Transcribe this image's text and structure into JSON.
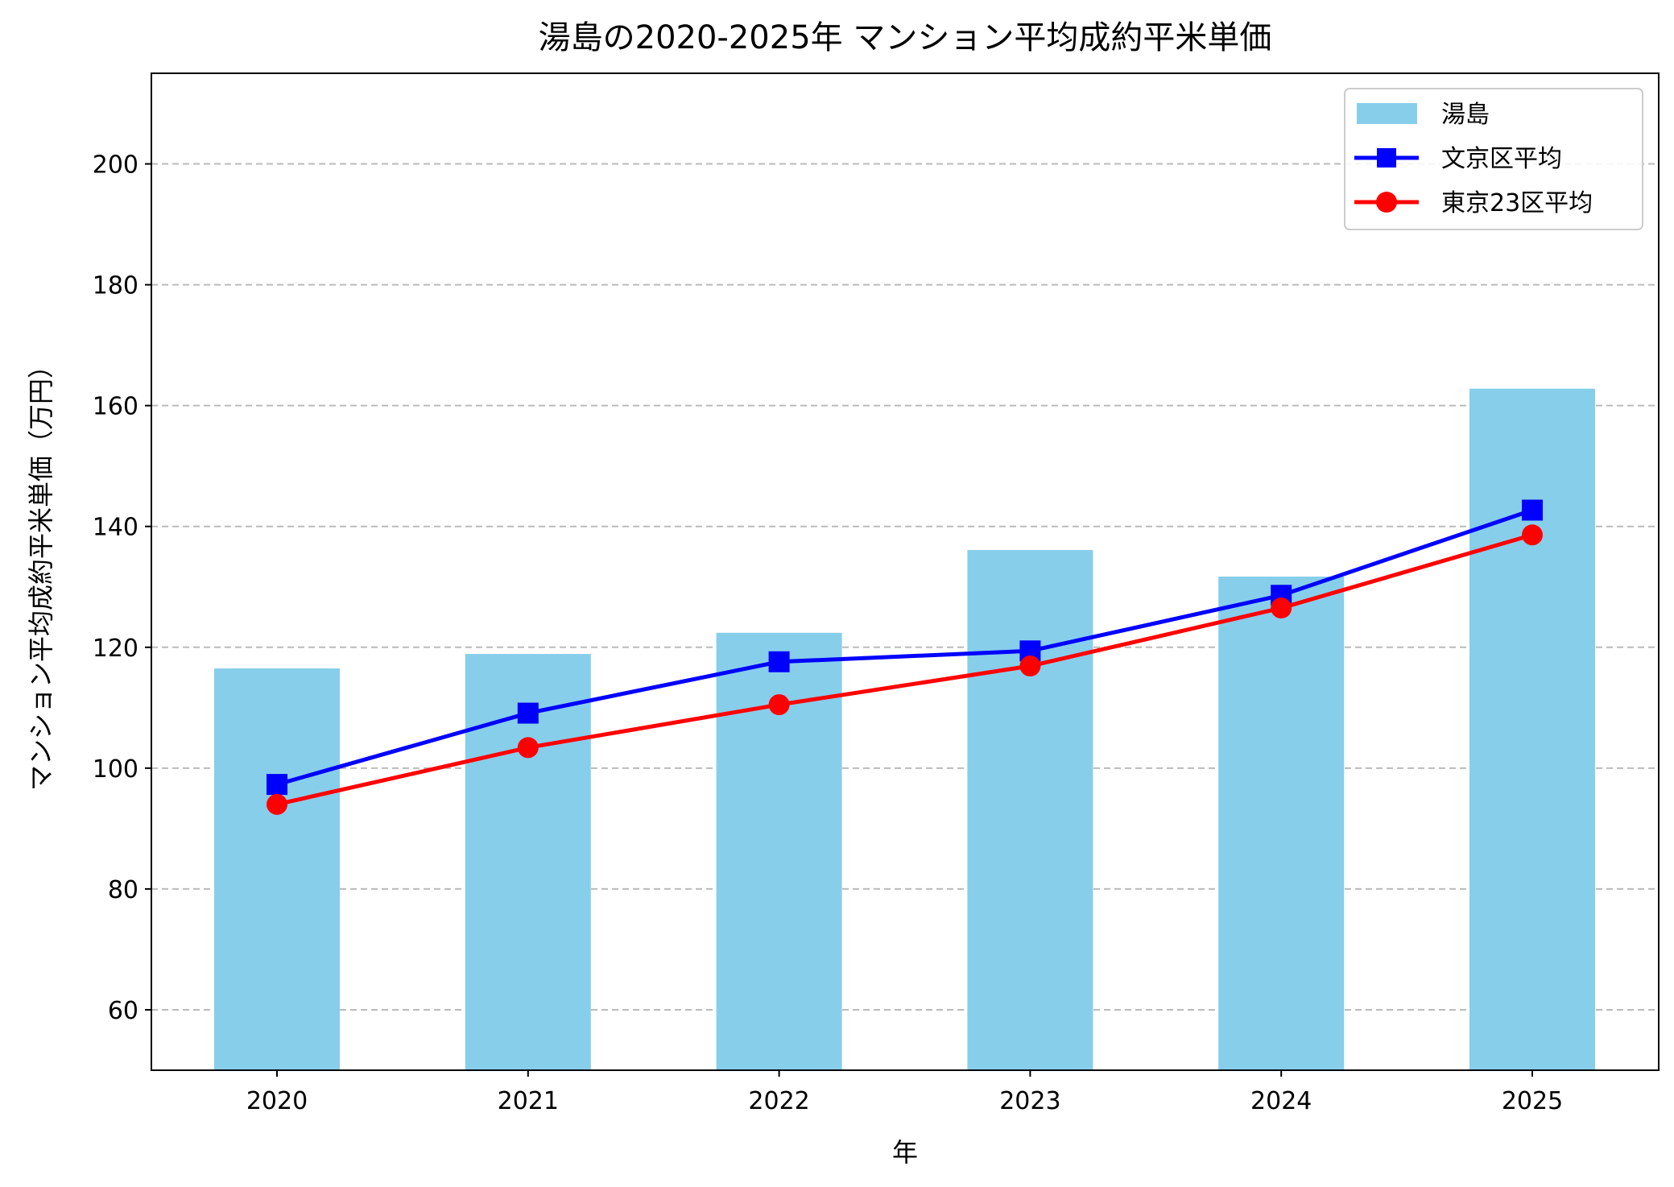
{
  "chart_data": {
    "type": "bar",
    "title": "湯島の2020-2025年 マンション平均成約平米単価",
    "xlabel": "年",
    "ylabel": "マンション平均成約平米単価（万円）",
    "categories": [
      "2020",
      "2021",
      "2022",
      "2023",
      "2024",
      "2025"
    ],
    "ylim": [
      50,
      215
    ],
    "yticks": [
      60,
      80,
      100,
      120,
      140,
      160,
      180,
      200
    ],
    "grid": "y-dashed",
    "legend_position": "top-right",
    "series": [
      {
        "name": "湯島",
        "kind": "bar",
        "color": "#87CEEB",
        "values": [
          116.5,
          118.9,
          122.4,
          136.1,
          131.7,
          162.8
        ]
      },
      {
        "name": "文京区平均",
        "kind": "line",
        "marker": "square",
        "color": "#0000FF",
        "values": [
          97.3,
          109.1,
          117.6,
          119.4,
          128.6,
          142.7
        ]
      },
      {
        "name": "東京23区平均",
        "kind": "line",
        "marker": "circle",
        "color": "#FF0000",
        "values": [
          94.0,
          103.4,
          110.5,
          116.9,
          126.5,
          138.6
        ]
      }
    ]
  }
}
